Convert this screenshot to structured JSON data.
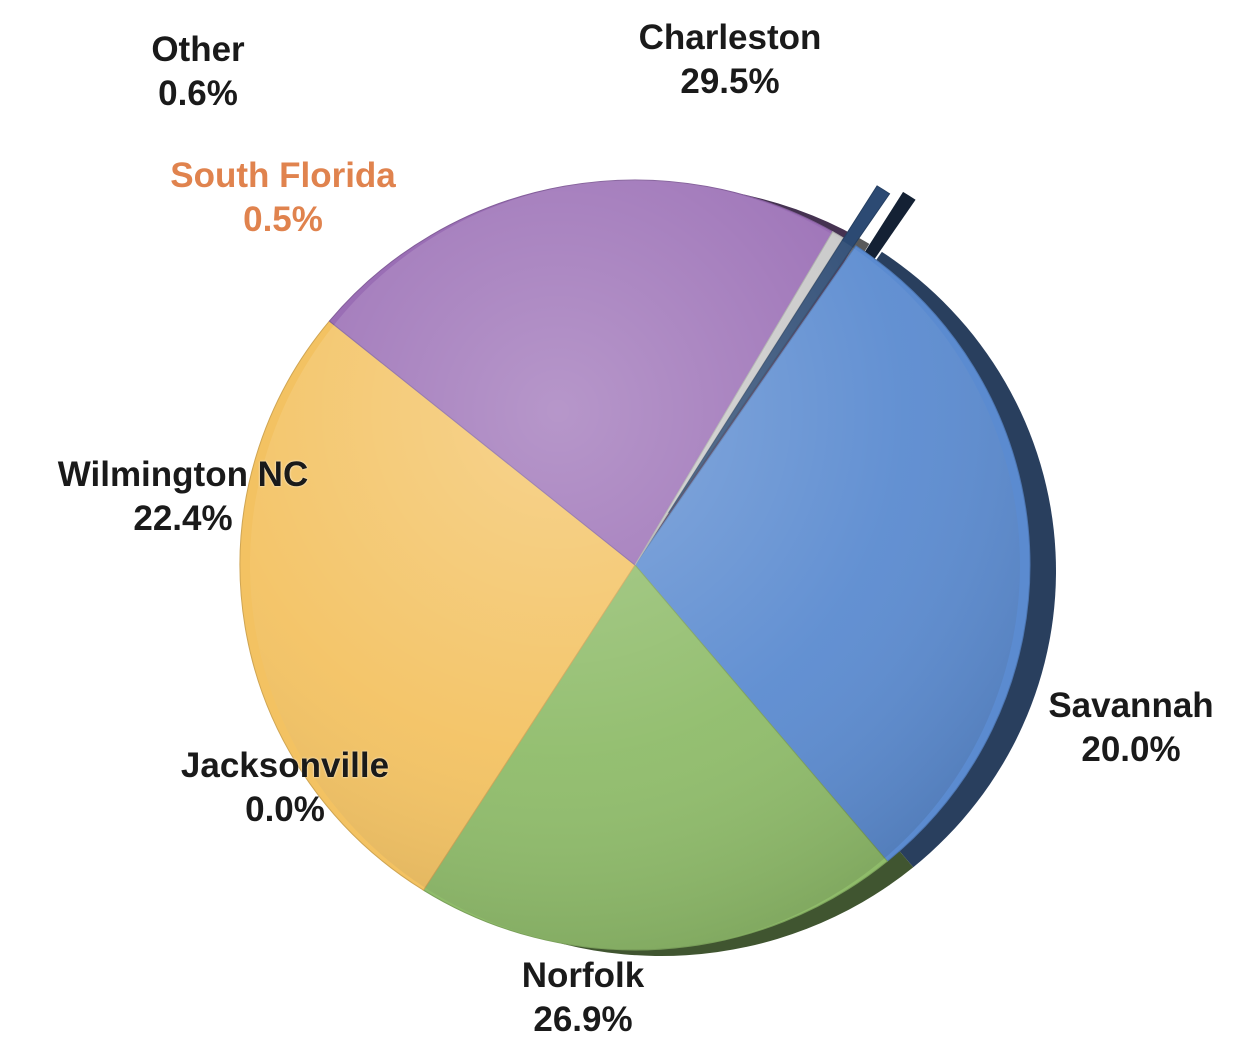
{
  "chart_data": {
    "type": "pie",
    "title": "",
    "legend": "none",
    "slices": [
      {
        "name": "Charleston",
        "value": 29.5,
        "label": "29.5%",
        "color": "#5b8bd0",
        "label_color": "#1a1a1a"
      },
      {
        "name": "Savannah",
        "value": 20.0,
        "label": "20.0%",
        "color": "#8fbc6a",
        "label_color": "#1a1a1a"
      },
      {
        "name": "Norfolk",
        "value": 26.9,
        "label": "26.9%",
        "color": "#f3c262",
        "label_color": "#1a1a1a"
      },
      {
        "name": "Jacksonville",
        "value": 0.0,
        "label": "0.0%",
        "color": "#c9c9c9",
        "label_color": "#1a1a1a"
      },
      {
        "name": "Wilmington NC",
        "value": 22.4,
        "label": "22.4%",
        "color": "#9a6eb5",
        "label_color": "#1a1a1a"
      },
      {
        "name": "South Florida",
        "value": 0.5,
        "label": "0.5%",
        "color": "#c8c8c8",
        "label_color": "#e0834e"
      },
      {
        "name": "Other",
        "value": 0.6,
        "label": "0.6%",
        "color": "#2c4a73",
        "label_color": "#1a1a1a",
        "exploded": true
      }
    ]
  }
}
